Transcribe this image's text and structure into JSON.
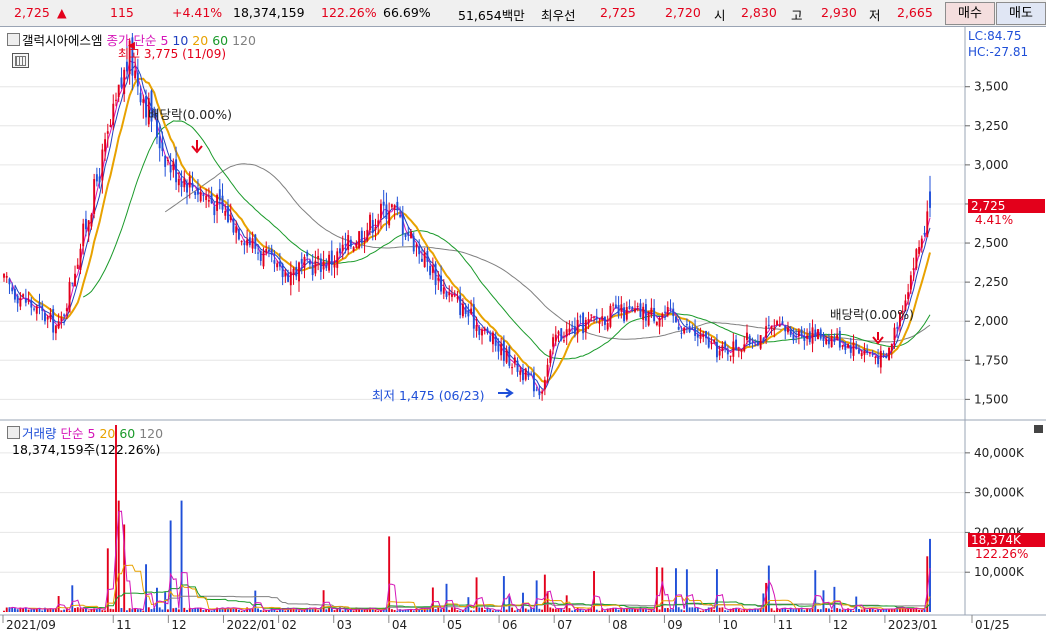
{
  "topbar": {
    "price": "2,725",
    "up_arrow": "▲",
    "change": "115",
    "change_pct": "+4.41%",
    "volume": "18,374,159",
    "volume_ratio": "122.26%",
    "ratio2": "66.69%",
    "amount": "51,654백만",
    "best_label": "최우선",
    "bid": "2,725",
    "ask": "2,720",
    "open_label": "시",
    "open": "2,830",
    "high_label": "고",
    "high": "2,930",
    "low_label": "저",
    "low": "2,665",
    "buy_button": "매수",
    "sell_button": "매도"
  },
  "price_panel": {
    "stock_name": "갤럭시아에스엠",
    "ma_title": "종가 단순",
    "ma_periods": [
      "5",
      "10",
      "20",
      "60",
      "120"
    ],
    "lc": "LC:84.75",
    "hc": "HC:-27.81",
    "high_annotation": "최고 3,775 (11/09)",
    "low_annotation": "최저 1,475 (06/23)",
    "dividend_1": "배당락(0.00%)",
    "dividend_2": "배당락(0.00%)",
    "current_price_tag": "2,725",
    "current_pct_tag": "4.41%",
    "y_ticks": [
      "3,500",
      "3,250",
      "3,000",
      "2,750",
      "2,500",
      "2,250",
      "2,000",
      "1,750",
      "1,500"
    ]
  },
  "volume_panel": {
    "title": "거래량",
    "ma_title": "단순",
    "ma_periods": [
      "5",
      "20",
      "60",
      "120"
    ],
    "current_volume": "18,374,159주(122.26%)",
    "current_volume_tag": "18,374K",
    "current_ratio_tag": "122.26%",
    "y_ticks": [
      "40,000K",
      "30,000K",
      "20,000K",
      "10,000K"
    ]
  },
  "x_axis": [
    "2021/09",
    "11",
    "12",
    "2022/01",
    "02",
    "03",
    "04",
    "05",
    "06",
    "07",
    "08",
    "09",
    "10",
    "11",
    "12",
    "2023/01",
    "01/25"
  ],
  "colors": {
    "up": "#e3001b",
    "down": "#1f4fd8",
    "ma5": "#d516b8",
    "ma10": "#1f3fc0",
    "ma20": "#e8a200",
    "ma60": "#1a9a2a",
    "ma120": "#808080"
  },
  "chart_data": {
    "type": "candlestick",
    "period": "daily",
    "y_range": [
      1400,
      3850
    ],
    "price_keypoints": [
      {
        "date": "2021/09",
        "close": 2250
      },
      {
        "date": "2021/10",
        "close": 1950
      },
      {
        "date": "2021/11/09",
        "close": 3700,
        "high": 3775
      },
      {
        "date": "2021/12",
        "close": 3000
      },
      {
        "date": "2022/01",
        "close": 2700
      },
      {
        "date": "2022/02",
        "close": 2300
      },
      {
        "date": "2022/03",
        "close": 2400
      },
      {
        "date": "2022/04",
        "close": 2750
      },
      {
        "date": "2022/05",
        "close": 2200
      },
      {
        "date": "2022/06/23",
        "close": 1550,
        "low": 1475
      },
      {
        "date": "2022/07",
        "close": 1900
      },
      {
        "date": "2022/08",
        "close": 2050
      },
      {
        "date": "2022/09",
        "close": 2050
      },
      {
        "date": "2022/10",
        "close": 1800
      },
      {
        "date": "2022/11",
        "close": 1950
      },
      {
        "date": "2022/12",
        "close": 1900
      },
      {
        "date": "2023/01",
        "close": 1750
      },
      {
        "date": "2023/01/25",
        "open": 2830,
        "high": 2930,
        "low": 2665,
        "close": 2725
      }
    ],
    "volume_range_k": [
      0,
      47000
    ],
    "last_volume_k": 18374
  }
}
